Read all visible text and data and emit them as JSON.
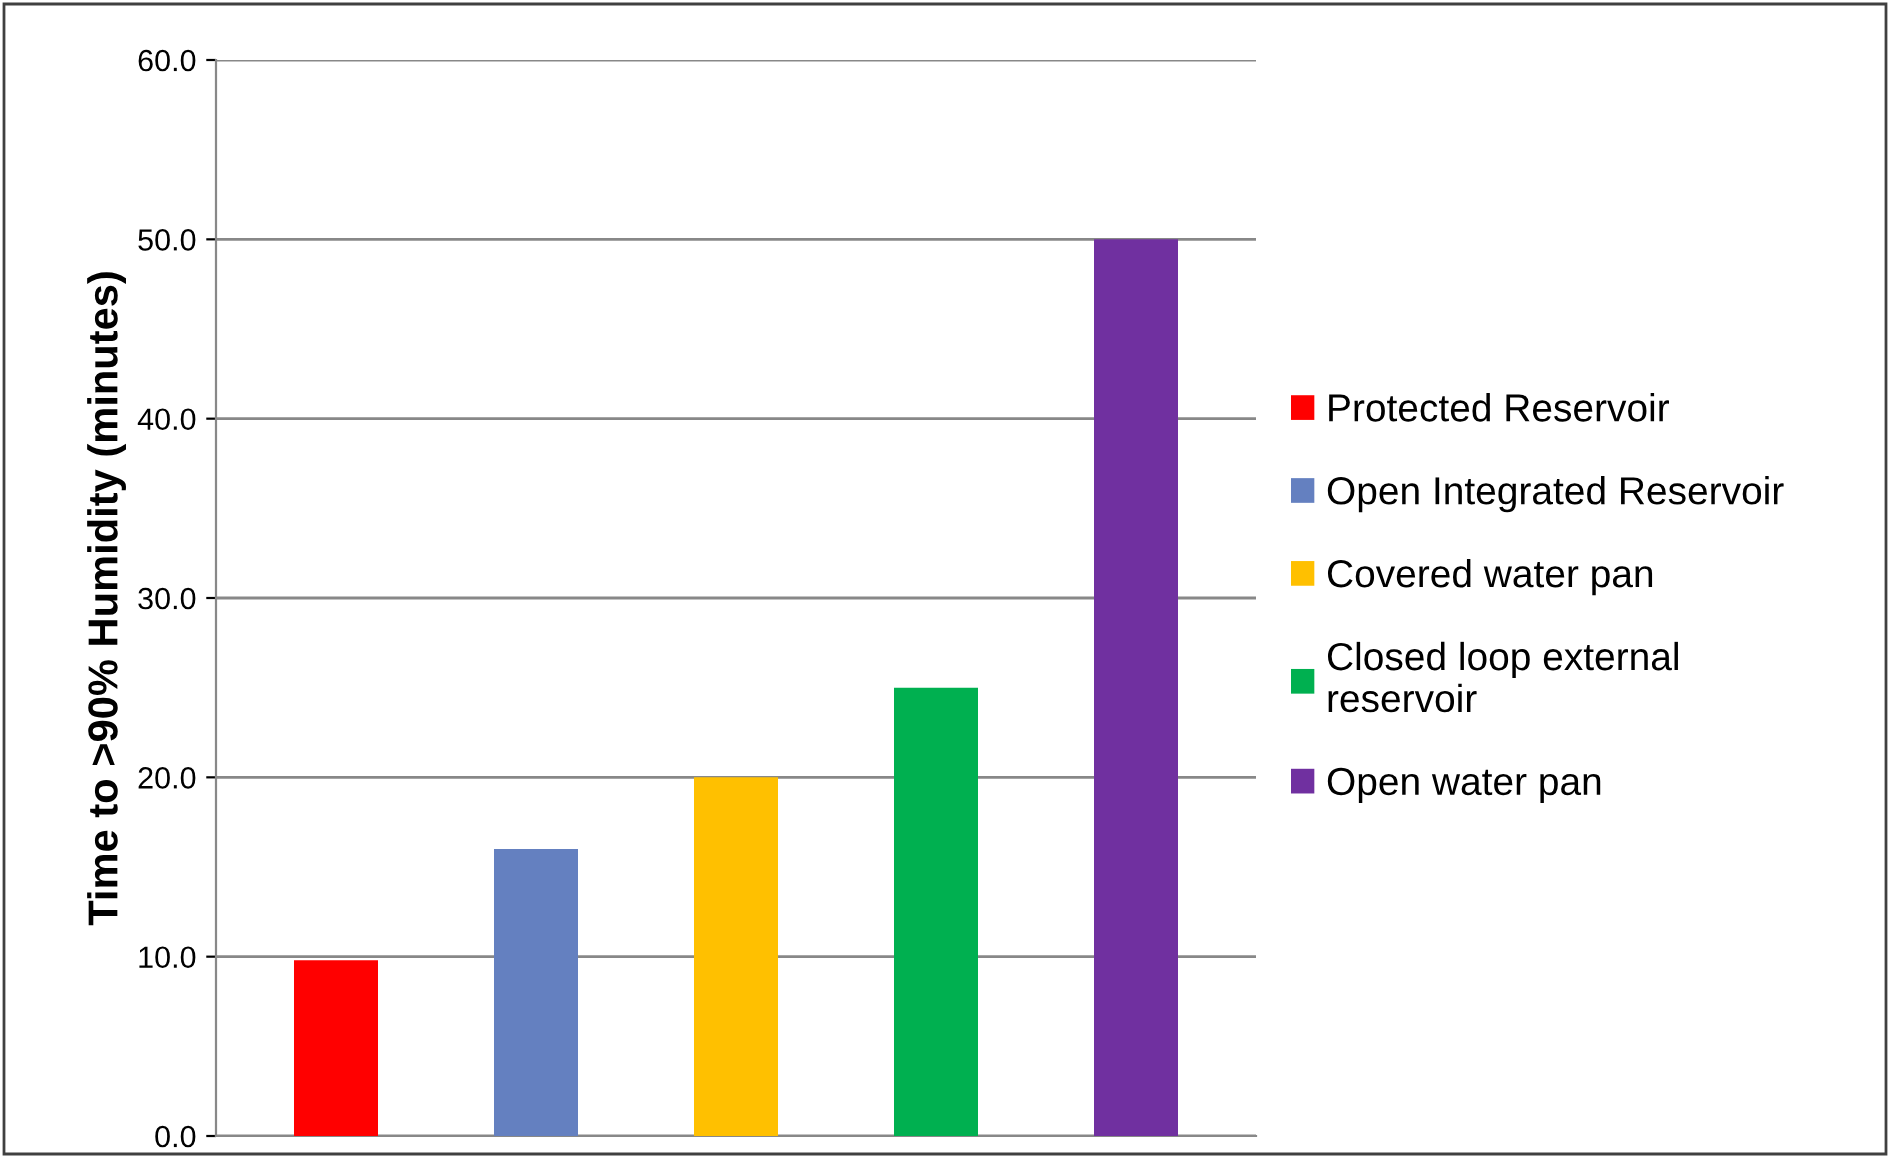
{
  "chart_data": {
    "type": "bar",
    "ylabel": "Time to >90% Humidity (minutes)",
    "categories": [
      null,
      null,
      null,
      null,
      null
    ],
    "series": [
      {
        "name": "Protected Reservoir",
        "color": "#ff0000",
        "values": [
          9.8,
          null,
          null,
          null,
          null
        ]
      },
      {
        "name": "Open Integrated Reservoir",
        "color": "#6480c0",
        "values": [
          null,
          16,
          null,
          null,
          null
        ]
      },
      {
        "name": "Covered water pan",
        "color": "#ffc000",
        "values": [
          null,
          null,
          20,
          null,
          null
        ]
      },
      {
        "name": "Closed loop external reservoir",
        "color": "#00b050",
        "values": [
          null,
          null,
          null,
          25,
          null
        ]
      },
      {
        "name": "Open water pan",
        "color": "#7030a0",
        "values": [
          null,
          null,
          null,
          null,
          50
        ]
      }
    ],
    "ylim": [
      0,
      60
    ],
    "yticks": [
      {
        "value": 0,
        "label": "0.0"
      },
      {
        "value": 10,
        "label": "10.0"
      },
      {
        "value": 20,
        "label": "20.0"
      },
      {
        "value": 30,
        "label": "30.0"
      },
      {
        "value": 40,
        "label": "40.0"
      },
      {
        "value": 50,
        "label": "50.0"
      },
      {
        "value": 60,
        "label": "60.0"
      }
    ],
    "grid": "y",
    "legend": "right"
  }
}
